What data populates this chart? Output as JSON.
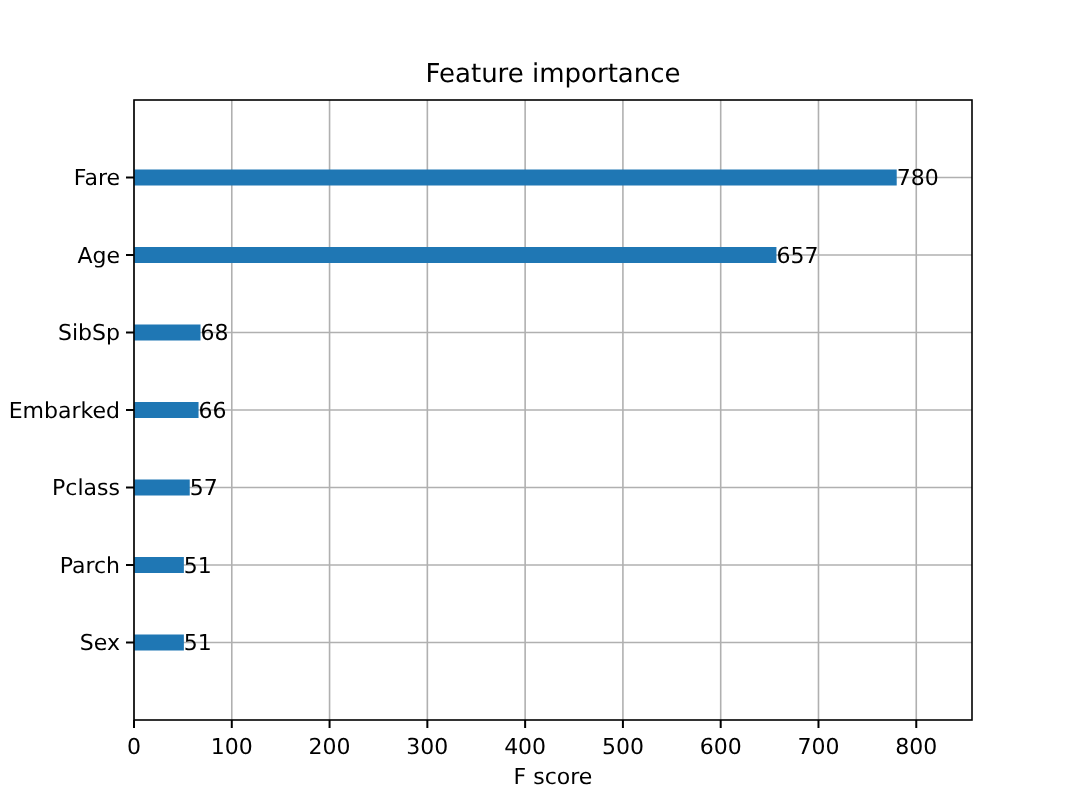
{
  "chart_data": {
    "type": "bar",
    "orientation": "horizontal",
    "title": "Feature importance",
    "xlabel": "F score",
    "categories": [
      "Fare",
      "Age",
      "SibSp",
      "Embarked",
      "Pclass",
      "Parch",
      "Sex"
    ],
    "values": [
      780,
      657,
      68,
      66,
      57,
      51,
      51
    ],
    "color": "#1f77b4",
    "xlim": [
      0,
      857
    ],
    "xticks": [
      0,
      100,
      200,
      300,
      400,
      500,
      600,
      700,
      800
    ],
    "grid": true,
    "data_labels": true
  }
}
